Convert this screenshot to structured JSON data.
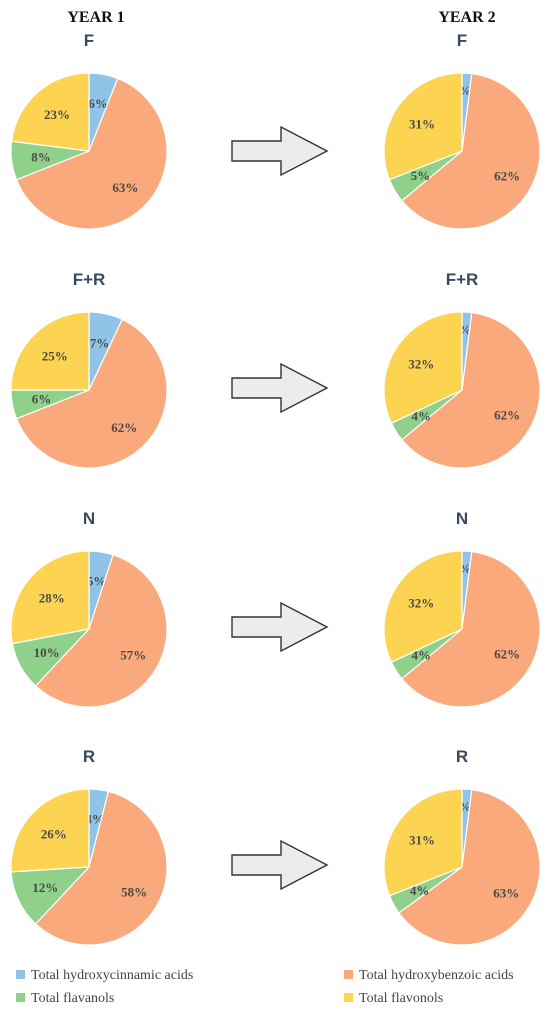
{
  "headers": {
    "year1": "YEAR 1",
    "year2": "YEAR 2"
  },
  "colors": {
    "Total hydroxycinnamic acids": "#8fc3e8",
    "Total hydroxybenzoic acids": "#f9a97c",
    "Total flavanols": "#8fd18a",
    "Total flavonols": "#fcd452",
    "title": "#3a4a5e",
    "label": "#4a4a4a",
    "arrow_fill": "#ececec",
    "arrow_stroke": "#333333"
  },
  "legend": [
    {
      "label": "Total hydroxycinnamic acids",
      "icon": "square-marker"
    },
    {
      "label": "Total hydroxybenzoic acids",
      "icon": "square-marker"
    },
    {
      "label": "Total flavanols",
      "icon": "square-marker"
    },
    {
      "label": "Total flavonols",
      "icon": "square-marker"
    }
  ],
  "chart_data": [
    {
      "type": "pie",
      "title": "F",
      "year": "YEAR 1",
      "categories": [
        "Total hydroxycinnamic acids",
        "Total hydroxybenzoic acids",
        "Total flavanols",
        "Total flavonols"
      ],
      "values": [
        6,
        63,
        8,
        23
      ]
    },
    {
      "type": "pie",
      "title": "F",
      "year": "YEAR 2",
      "categories": [
        "Total hydroxycinnamic acids",
        "Total hydroxybenzoic acids",
        "Total flavanols",
        "Total flavonols"
      ],
      "values": [
        2,
        62,
        5,
        31
      ]
    },
    {
      "type": "pie",
      "title": "F+R",
      "year": "YEAR 1",
      "categories": [
        "Total hydroxycinnamic acids",
        "Total hydroxybenzoic acids",
        "Total flavanols",
        "Total flavonols"
      ],
      "values": [
        7,
        62,
        6,
        25
      ]
    },
    {
      "type": "pie",
      "title": "F+R",
      "year": "YEAR 2",
      "categories": [
        "Total hydroxycinnamic acids",
        "Total hydroxybenzoic acids",
        "Total flavanols",
        "Total flavonols"
      ],
      "values": [
        2,
        62,
        4,
        32
      ]
    },
    {
      "type": "pie",
      "title": "N",
      "year": "YEAR 1",
      "categories": [
        "Total hydroxycinnamic acids",
        "Total hydroxybenzoic acids",
        "Total flavanols",
        "Total flavonols"
      ],
      "values": [
        5,
        57,
        10,
        28
      ]
    },
    {
      "type": "pie",
      "title": "N",
      "year": "YEAR 2",
      "categories": [
        "Total hydroxycinnamic acids",
        "Total hydroxybenzoic acids",
        "Total flavanols",
        "Total flavonols"
      ],
      "values": [
        2,
        62,
        4,
        32
      ]
    },
    {
      "type": "pie",
      "title": "R",
      "year": "YEAR 1",
      "categories": [
        "Total hydroxycinnamic acids",
        "Total hydroxybenzoic acids",
        "Total flavanols",
        "Total flavonols"
      ],
      "values": [
        4,
        58,
        12,
        26
      ]
    },
    {
      "type": "pie",
      "title": "R",
      "year": "YEAR 2",
      "categories": [
        "Total hydroxycinnamic acids",
        "Total hydroxybenzoic acids",
        "Total flavanols",
        "Total flavonols"
      ],
      "values": [
        2,
        63,
        4,
        31
      ]
    }
  ]
}
